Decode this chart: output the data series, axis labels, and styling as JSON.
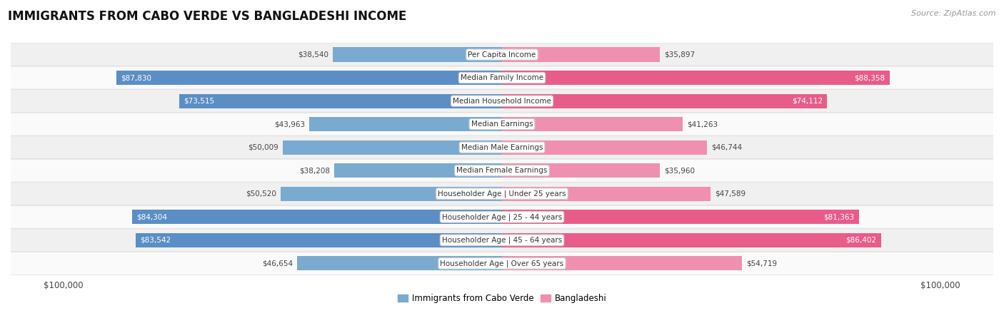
{
  "title": "IMMIGRANTS FROM CABO VERDE VS BANGLADESHI INCOME",
  "source": "Source: ZipAtlas.com",
  "categories": [
    "Per Capita Income",
    "Median Family Income",
    "Median Household Income",
    "Median Earnings",
    "Median Male Earnings",
    "Median Female Earnings",
    "Householder Age | Under 25 years",
    "Householder Age | 25 - 44 years",
    "Householder Age | 45 - 64 years",
    "Householder Age | Over 65 years"
  ],
  "cabo_verde": [
    38540,
    87830,
    73515,
    43963,
    50009,
    38208,
    50520,
    84304,
    83542,
    46654
  ],
  "bangladeshi": [
    35897,
    88358,
    74112,
    41263,
    46744,
    35960,
    47589,
    81363,
    86402,
    54719
  ],
  "max_value": 100000,
  "cabo_verde_light": "#a8c4e0",
  "cabo_verde_mid": "#7aaad0",
  "cabo_verde_dark": "#5b8ec4",
  "bangladeshi_light": "#f5b8cc",
  "bangladeshi_mid": "#f090b0",
  "bangladeshi_dark": "#e85c8a",
  "row_bg_odd": "#f0f0f0",
  "row_bg_even": "#fafafa",
  "bar_height": 0.62,
  "cabo_verde_label": "Immigrants from Cabo Verde",
  "bangladeshi_label": "Bangladeshi",
  "large_threshold": 65000
}
